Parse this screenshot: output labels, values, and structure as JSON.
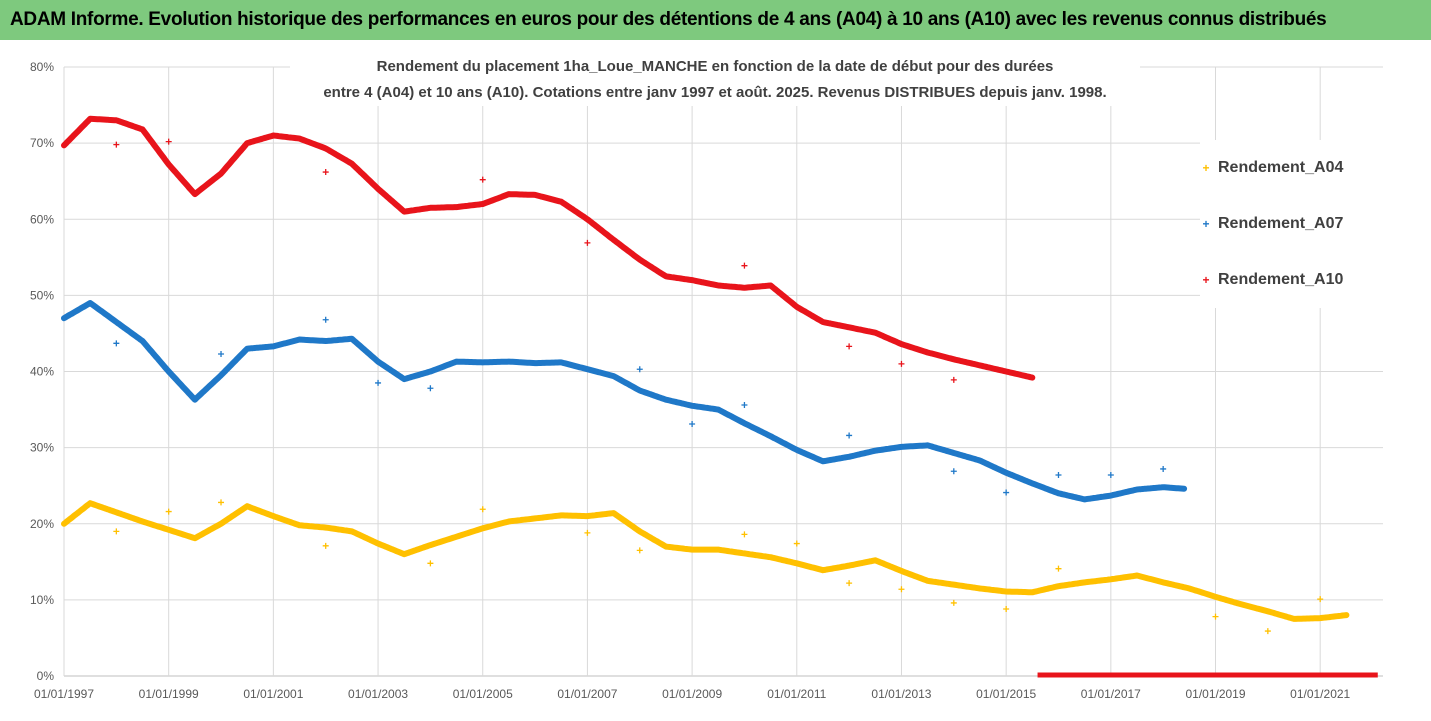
{
  "header": {
    "banner_title": "ADAM Informe. Evolution historique des performances en euros pour des détentions de 4 ans (A04) à 10 ans (A10) avec les revenus connus distribués"
  },
  "chart_data": {
    "type": "scatter",
    "title_lines": [
      "Rendement du placement 1ha_Loue_MANCHE en fonction de la date de début pour des durées",
      "entre 4 (A04) et 10 ans (A10). Cotations entre janv 1997 et août. 2025. Revenus DISTRIBUES depuis janv. 1998."
    ],
    "marker": "+",
    "legend_position": "right",
    "grid": "horizontal and vertical",
    "xlim": [
      1997.0,
      2022.2
    ],
    "ylim": [
      0,
      80
    ],
    "x_ticks": [
      "01/01/1997",
      "01/01/1999",
      "01/01/2001",
      "01/01/2003",
      "01/01/2005",
      "01/01/2007",
      "01/01/2009",
      "01/01/2011",
      "01/01/2013",
      "01/01/2015",
      "01/01/2017",
      "01/01/2019",
      "01/01/2021"
    ],
    "x_tick_values": [
      1997,
      1999,
      2001,
      2003,
      2005,
      2007,
      2009,
      2011,
      2013,
      2015,
      2017,
      2019,
      2021
    ],
    "y_ticks": [
      "0%",
      "10%",
      "20%",
      "30%",
      "40%",
      "50%",
      "60%",
      "70%",
      "80%"
    ],
    "y_tick_values": [
      0,
      10,
      20,
      30,
      40,
      50,
      60,
      70,
      80
    ],
    "series": [
      {
        "name": "Rendement_A04",
        "color": "#ffc000",
        "x": [
          1997.0,
          1997.5,
          1998.0,
          1998.5,
          1999.0,
          1999.5,
          2000.0,
          2000.5,
          2001.0,
          2001.5,
          2002.0,
          2002.5,
          2003.0,
          2003.5,
          2004.0,
          2004.5,
          2005.0,
          2005.5,
          2006.0,
          2006.5,
          2007.0,
          2007.5,
          2008.0,
          2008.5,
          2009.0,
          2009.5,
          2010.0,
          2010.5,
          2011.0,
          2011.5,
          2012.0,
          2012.5,
          2013.0,
          2013.5,
          2014.0,
          2014.5,
          2015.0,
          2015.5,
          2016.0,
          2016.5,
          2017.0,
          2017.5,
          2018.0,
          2018.5,
          2019.0,
          2019.5,
          2020.0,
          2020.5,
          2021.0,
          2021.5
        ],
        "values": [
          20,
          22.7,
          21.5,
          20.3,
          19.2,
          18.1,
          20.0,
          22.3,
          21.0,
          19.8,
          19.5,
          19.0,
          17.4,
          16.0,
          17.2,
          18.3,
          19.4,
          20.3,
          20.7,
          21.1,
          21.0,
          21.4,
          19.0,
          17.0,
          16.6,
          16.6,
          16.1,
          15.6,
          14.8,
          13.9,
          14.5,
          15.2,
          13.8,
          12.5,
          12.0,
          11.5,
          11.1,
          11.0,
          11.8,
          12.3,
          12.7,
          13.2,
          12.3,
          11.5,
          10.4,
          9.4,
          8.5,
          7.5,
          7.6,
          8.0
        ],
        "outliers_x": [
          1998.0,
          1999.0,
          2000.0,
          2002.0,
          2004.0,
          2005.0,
          2007.0,
          2008.0,
          2010.0,
          2011.0,
          2012.0,
          2013.0,
          2014.0,
          2015.0,
          2016.0,
          2019.0,
          2020.0,
          2021.0
        ],
        "outliers_values": [
          19.0,
          21.6,
          22.8,
          17.1,
          14.8,
          21.9,
          18.8,
          16.5,
          18.6,
          17.4,
          12.2,
          11.4,
          9.6,
          8.8,
          14.1,
          7.8,
          5.9,
          10.1
        ]
      },
      {
        "name": "Rendement_A07",
        "color": "#1f78c8",
        "x": [
          1997.0,
          1997.5,
          1998.0,
          1998.5,
          1999.0,
          1999.5,
          2000.0,
          2000.5,
          2001.0,
          2001.5,
          2002.0,
          2002.5,
          2003.0,
          2003.5,
          2004.0,
          2004.5,
          2005.0,
          2005.5,
          2006.0,
          2006.5,
          2007.0,
          2007.5,
          2008.0,
          2008.5,
          2009.0,
          2009.5,
          2010.0,
          2010.5,
          2011.0,
          2011.5,
          2012.0,
          2012.5,
          2013.0,
          2013.5,
          2014.0,
          2014.5,
          2015.0,
          2015.5,
          2016.0,
          2016.5,
          2017.0,
          2017.5,
          2018.0,
          2018.4
        ],
        "values": [
          47.0,
          49.0,
          46.5,
          44.0,
          40.0,
          36.3,
          39.5,
          43.0,
          43.3,
          44.2,
          44.0,
          44.3,
          41.3,
          39.0,
          40.0,
          41.3,
          41.2,
          41.3,
          41.1,
          41.2,
          40.3,
          39.4,
          37.5,
          36.3,
          35.5,
          35.0,
          33.2,
          31.5,
          29.7,
          28.2,
          28.8,
          29.6,
          30.1,
          30.3,
          29.3,
          28.3,
          26.7,
          25.3,
          24.0,
          23.2,
          23.7,
          24.5,
          24.8,
          24.6
        ],
        "outliers_x": [
          1998.0,
          2000.0,
          2002.0,
          2003.0,
          2004.0,
          2008.0,
          2009.0,
          2010.0,
          2012.0,
          2014.0,
          2015.0,
          2016.0,
          2017.0,
          2018.0
        ],
        "outliers_values": [
          43.7,
          42.3,
          46.8,
          38.5,
          37.8,
          40.3,
          33.1,
          35.6,
          31.6,
          26.9,
          24.1,
          26.4,
          26.4,
          27.2
        ]
      },
      {
        "name": "Rendement_A10",
        "color": "#e8141b",
        "x": [
          1997.0,
          1997.5,
          1998.0,
          1998.5,
          1999.0,
          1999.5,
          2000.0,
          2000.5,
          2001.0,
          2001.5,
          2002.0,
          2002.5,
          2003.0,
          2003.5,
          2004.0,
          2004.5,
          2005.0,
          2005.5,
          2006.0,
          2006.5,
          2007.0,
          2007.5,
          2008.0,
          2008.5,
          2009.0,
          2009.5,
          2010.0,
          2010.5,
          2011.0,
          2011.5,
          2012.0,
          2012.5,
          2013.0,
          2013.5,
          2014.0,
          2014.5,
          2015.0,
          2015.5
        ],
        "values": [
          69.7,
          73.2,
          73.0,
          71.8,
          67.2,
          63.3,
          66.0,
          70.0,
          71.0,
          70.6,
          69.3,
          67.3,
          64.0,
          61.0,
          61.5,
          61.6,
          62.0,
          63.3,
          63.2,
          62.3,
          60.0,
          57.3,
          54.7,
          52.5,
          52.0,
          51.3,
          51.0,
          51.3,
          48.5,
          46.5,
          45.8,
          45.1,
          43.6,
          42.5,
          41.6,
          40.8,
          40.0,
          39.2
        ],
        "outliers_x": [
          1998.0,
          1999.0,
          2002.0,
          2005.0,
          2007.0,
          2010.0,
          2012.0,
          2013.0,
          2014.0
        ],
        "outliers_values": [
          69.8,
          70.2,
          66.2,
          65.2,
          56.9,
          53.9,
          43.3,
          41.0,
          38.9
        ],
        "zero_segment_x": [
          2015.6,
          2022.1
        ],
        "zero_segment_value": 0
      }
    ]
  }
}
